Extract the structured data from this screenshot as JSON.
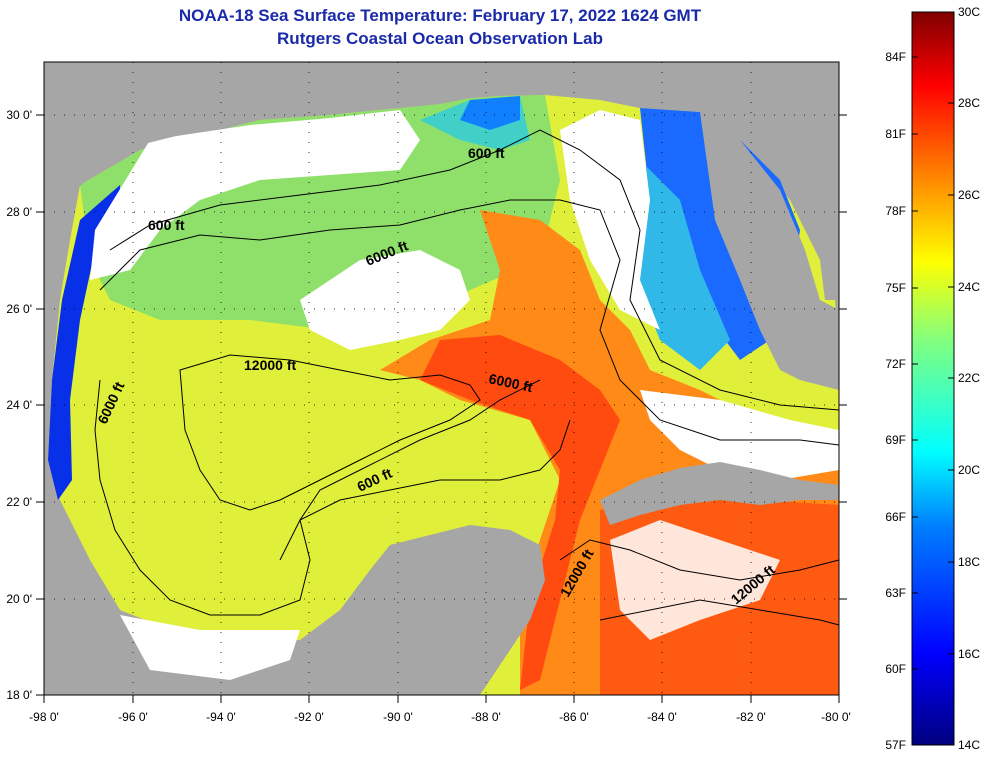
{
  "header": {
    "title": "NOAA-18 Sea Surface Temperature:  February 17, 2022 1624 GMT",
    "subtitle": "Rutgers Coastal Ocean Observation Lab"
  },
  "axes": {
    "longitude_labels": [
      "-98 0'",
      "-96 0'",
      "-94 0'",
      "-92 0'",
      "-90 0'",
      "-88 0'",
      "-86 0'",
      "-84 0'",
      "-82 0'",
      "-80 0'"
    ],
    "latitude_labels": [
      "30 0'",
      "28 0'",
      "26 0'",
      "24 0'",
      "22 0'",
      "20 0'",
      "18 0'"
    ],
    "lon_range": [
      -98,
      -80
    ],
    "lat_range": [
      18,
      31.1
    ]
  },
  "contours": {
    "labels": [
      "600 ft",
      "600 ft",
      "6000 ft",
      "12000 ft",
      "6000 ft",
      "6000 ft",
      "600 ft",
      "12000 ft",
      "12000 ft"
    ]
  },
  "colorbar": {
    "fahrenheit_labels": [
      "84F",
      "81F",
      "78F",
      "75F",
      "72F",
      "69F",
      "66F",
      "63F",
      "60F",
      "57F"
    ],
    "celsius_labels": [
      "30C",
      "28C",
      "26C",
      "24C",
      "22C",
      "20C",
      "18C",
      "16C",
      "14C"
    ],
    "range_c": [
      14,
      30
    ],
    "colors": [
      "#00007f",
      "#0000ff",
      "#0080ff",
      "#00ffff",
      "#80ff80",
      "#ffff00",
      "#ff8000",
      "#ff0000",
      "#7f0000"
    ]
  },
  "colors": {
    "land": "#a6a6a6",
    "cloud": "#ffffff",
    "title": "#1a2aa8"
  }
}
